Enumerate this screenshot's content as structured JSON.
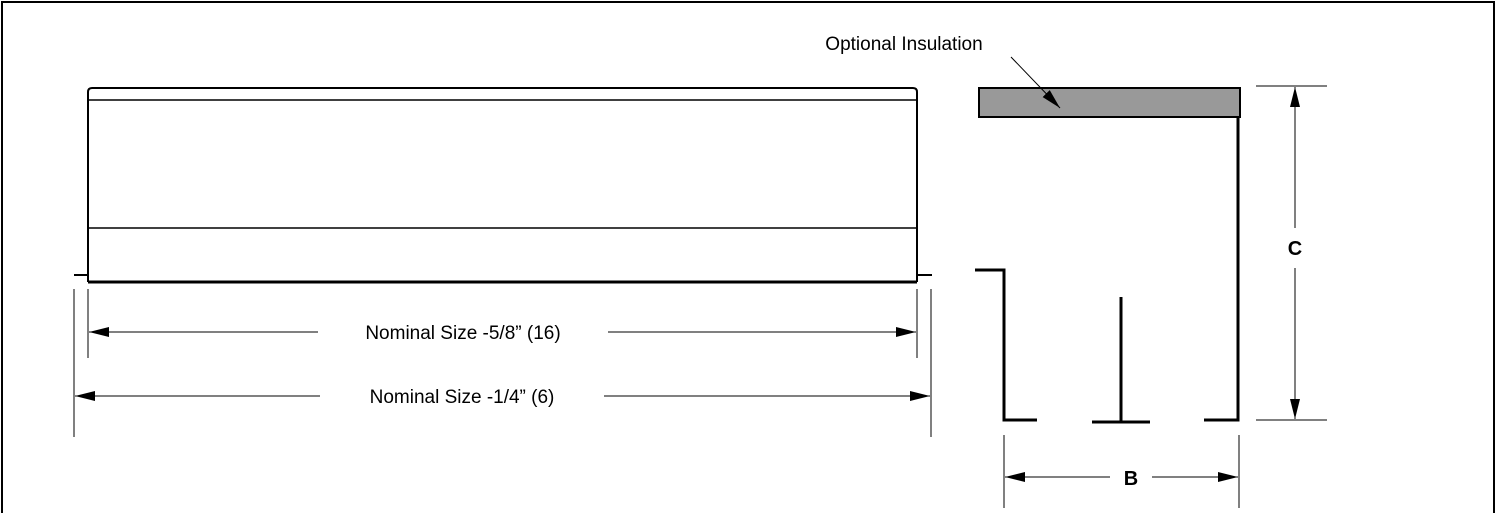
{
  "labels": {
    "insulation": "Optional Insulation",
    "dim_inner": "Nominal Size -5/8” (16)",
    "dim_outer": "Nominal Size -1/4” (6)",
    "dim_b": "B",
    "dim_c": "C"
  },
  "colors": {
    "line": "#000000",
    "insulation_fill": "#999999",
    "background": "#ffffff"
  }
}
